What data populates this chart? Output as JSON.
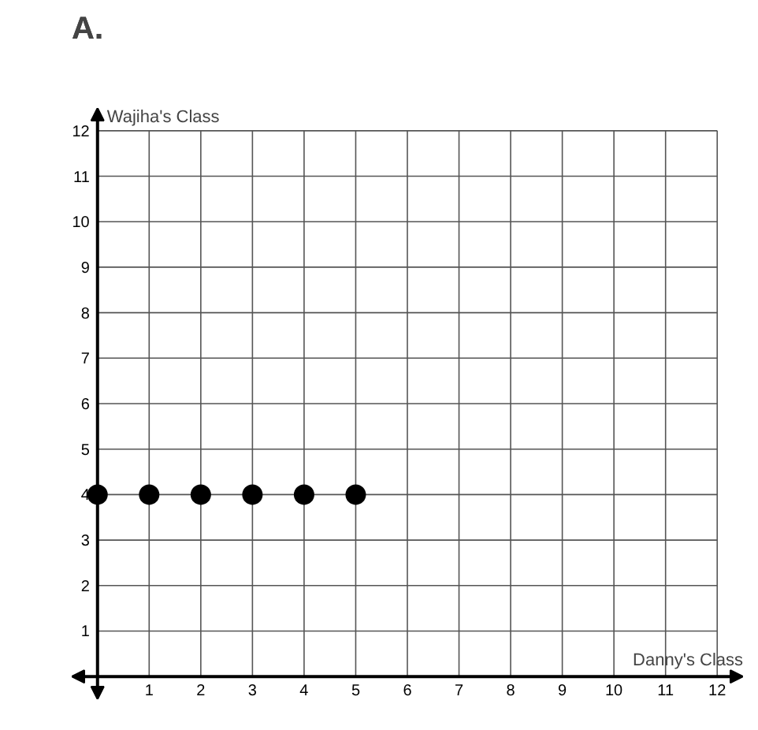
{
  "chart_data": {
    "type": "scatter",
    "title": "A.",
    "xlabel": "Danny's Class",
    "ylabel": "Wajiha's Class",
    "x": [
      0,
      1,
      2,
      3,
      4,
      5
    ],
    "series": [
      {
        "color": "#000000",
        "values": [
          4,
          4,
          4,
          4,
          4,
          4
        ]
      }
    ],
    "marker": "circle",
    "grid": true,
    "xlim": [
      -0.5,
      12.5
    ],
    "ylim": [
      -0.5,
      12.5
    ],
    "xticks": [
      1,
      2,
      3,
      4,
      5,
      6,
      7,
      8,
      9,
      10,
      11,
      12
    ],
    "yticks": [
      1,
      2,
      3,
      4,
      5,
      6,
      7,
      8,
      9,
      10,
      11,
      12
    ]
  }
}
